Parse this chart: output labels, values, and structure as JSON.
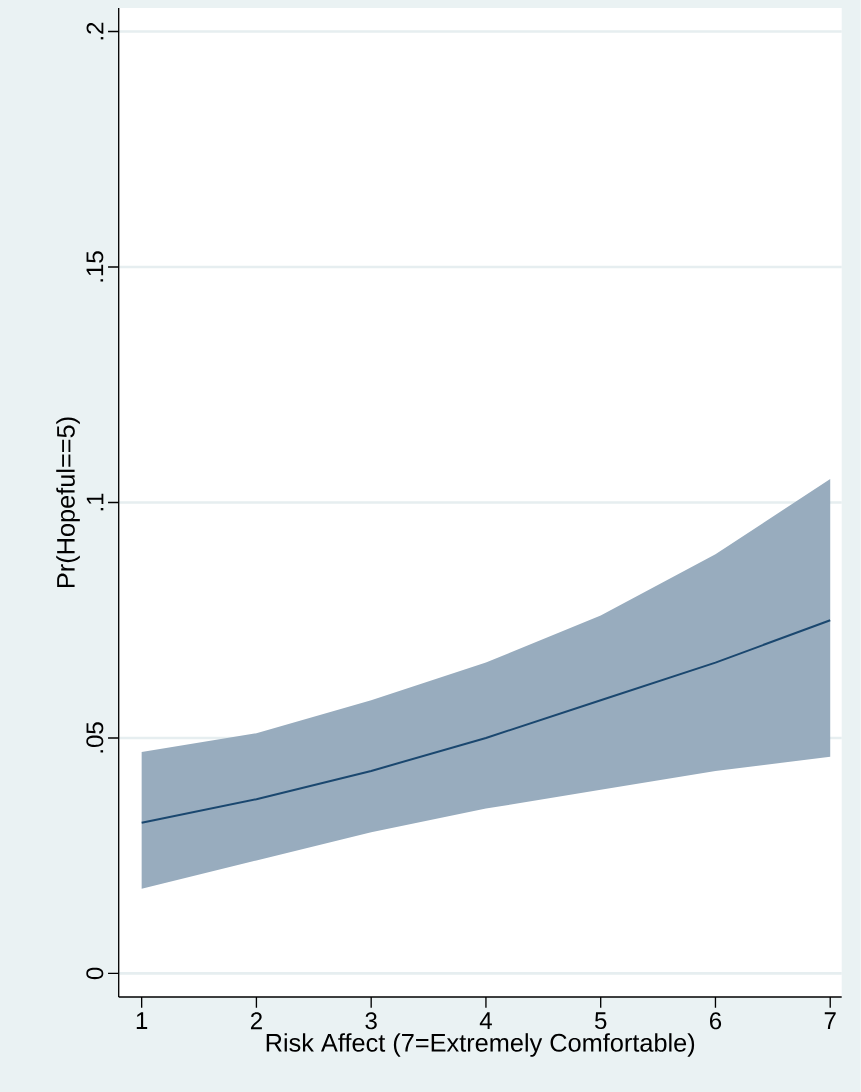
{
  "chart_data": {
    "type": "line",
    "xlabel": "Risk Affect (7=Extremely Comfortable)",
    "ylabel": "Pr(Hopeful==5)",
    "x": [
      1,
      2,
      3,
      4,
      5,
      6,
      7
    ],
    "series": [
      {
        "color": "#1a476f",
        "values": [
          0.032,
          0.037,
          0.043,
          0.05,
          0.058,
          0.066,
          0.075
        ],
        "lower": [
          0.018,
          0.024,
          0.03,
          0.035,
          0.039,
          0.043,
          0.046
        ],
        "upper": [
          0.047,
          0.051,
          0.058,
          0.066,
          0.076,
          0.089,
          0.105
        ]
      }
    ],
    "xlim": [
      0.8,
      7.1
    ],
    "ylim": [
      -0.005,
      0.205
    ],
    "xticks": [
      1,
      2,
      3,
      4,
      5,
      6,
      7
    ],
    "yticks": [
      {
        "value": 0,
        "label": "0"
      },
      {
        "value": 0.05,
        "label": ".05"
      },
      {
        "value": 0.1,
        "label": ".1"
      },
      {
        "value": 0.15,
        "label": ".15"
      },
      {
        "value": 0.2,
        "label": ".2"
      }
    ],
    "grid": "y",
    "marker": "none",
    "line_style": "solid"
  }
}
